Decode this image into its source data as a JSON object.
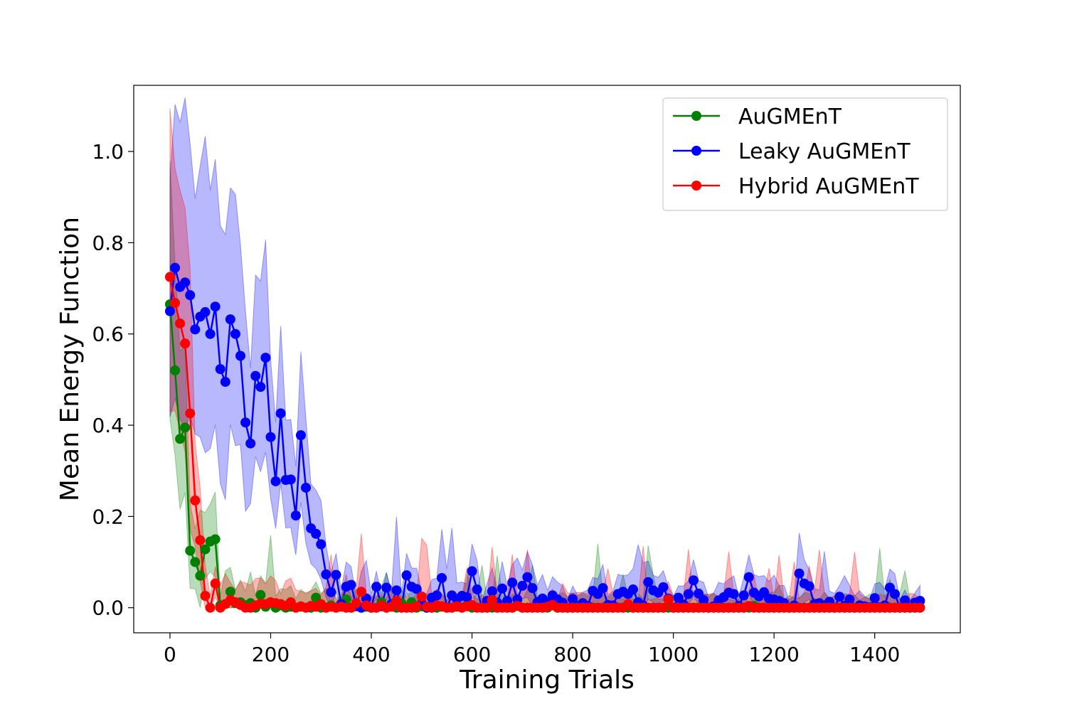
{
  "chart_data": {
    "type": "line",
    "title": "",
    "xlabel": "Training Trials",
    "ylabel": "Mean Energy Function",
    "xlim": [
      -72,
      1570
    ],
    "ylim": [
      -0.055,
      1.145
    ],
    "x_ticks": [
      0,
      200,
      400,
      600,
      800,
      1000,
      1200,
      1400
    ],
    "x_tick_labels": [
      "0",
      "200",
      "400",
      "600",
      "800",
      "1000",
      "1200",
      "1400"
    ],
    "y_ticks": [
      0.0,
      0.2,
      0.4,
      0.6,
      0.8,
      1.0
    ],
    "y_tick_labels": [
      "0.0",
      "0.2",
      "0.4",
      "0.6",
      "0.8",
      "1.0"
    ],
    "grid": false,
    "legend_position": "top-right",
    "marker": "circle",
    "shaded_band": "variability around each mean curve",
    "x_step": 10,
    "series": [
      {
        "name": "AuGMEnT",
        "color": "#008000",
        "values": [
          0.665,
          0.52,
          0.37,
          0.395,
          0.125,
          0.1,
          0.07,
          0.128,
          0.145,
          0.15,
          0.005,
          0.008,
          0.035,
          0.01,
          0.012,
          0.005,
          0.01,
          0.0,
          0.028,
          0.002,
          0.012,
          0.0,
          0.005,
          0.0,
          0.002,
          0.0,
          0.002,
          0.0,
          0.0,
          0.022,
          0.0,
          0.0,
          0.005,
          0.0,
          0.003,
          0.018,
          0.0,
          0.004,
          0.0,
          0.002,
          0.0,
          0.0,
          0.012,
          0.0,
          0.003,
          0.0,
          0.01,
          0.0,
          0.012,
          0.0,
          0.003,
          0.0,
          0.0,
          0.0,
          0.002,
          0.0,
          0.0,
          0.002,
          0.0,
          0.005,
          0.0,
          0.0,
          0.0,
          0.0,
          0.0,
          0.0,
          0.002,
          0.0,
          0.0,
          0.005,
          0.0,
          0.0,
          0.0,
          0.0,
          0.0,
          0.0,
          0.005,
          0.0,
          0.0,
          0.0,
          0.0,
          0.0,
          0.0,
          0.0,
          0.0,
          0.0,
          0.0,
          0.0,
          0.0,
          0.0,
          0.0,
          0.0,
          0.0,
          0.002,
          0.0,
          0.0,
          0.0,
          0.0,
          0.0,
          0.0,
          0.0,
          0.0,
          0.0,
          0.0,
          0.0,
          0.0,
          0.005,
          0.0,
          0.0,
          0.0,
          0.0,
          0.0,
          0.0,
          0.0,
          0.0,
          0.0,
          0.004,
          0.0,
          0.0,
          0.0,
          0.0,
          0.0,
          0.0,
          0.0,
          0.0,
          0.0,
          0.0,
          0.0,
          0.0,
          0.0,
          0.0,
          0.0,
          0.0,
          0.0,
          0.0,
          0.0,
          0.0,
          0.0,
          0.0,
          0.0,
          0.0,
          0.0,
          0.0,
          0.0,
          0.0,
          0.0,
          0.0,
          0.0,
          0.0,
          0.0
        ]
      },
      {
        "name": "Leaky AuGMEnT",
        "color": "#0000ff",
        "values": [
          0.65,
          0.745,
          0.703,
          0.713,
          0.685,
          0.61,
          0.638,
          0.648,
          0.6,
          0.66,
          0.523,
          0.495,
          0.632,
          0.6,
          0.552,
          0.406,
          0.36,
          0.508,
          0.484,
          0.548,
          0.374,
          0.277,
          0.426,
          0.28,
          0.281,
          0.202,
          0.378,
          0.263,
          0.174,
          0.162,
          0.139,
          0.073,
          0.034,
          0.072,
          0.008,
          0.046,
          0.05,
          0.003,
          0.0,
          0.02,
          0.0,
          0.046,
          0.003,
          0.044,
          0.008,
          0.038,
          0.0,
          0.071,
          0.046,
          0.041,
          0.009,
          0.0,
          0.022,
          0.027,
          0.065,
          0.0,
          0.027,
          0.019,
          0.026,
          0.023,
          0.08,
          0.04,
          0.0,
          0.015,
          0.036,
          0.011,
          0.042,
          0.015,
          0.055,
          0.018,
          0.048,
          0.067,
          0.043,
          0.012,
          0.02,
          0.012,
          0.027,
          0.018,
          0.011,
          0.0,
          0.019,
          0.004,
          0.01,
          0.004,
          0.037,
          0.03,
          0.043,
          0.006,
          0.005,
          0.03,
          0.035,
          0.03,
          0.04,
          0.012,
          0.005,
          0.056,
          0.038,
          0.033,
          0.045,
          0.02,
          0.0,
          0.022,
          0.007,
          0.03,
          0.06,
          0.031,
          0.017,
          0.0,
          0.003,
          0.016,
          0.023,
          0.033,
          0.03,
          0.004,
          0.027,
          0.067,
          0.033,
          0.025,
          0.034,
          0.02,
          0.018,
          0.015,
          0.01,
          0.0,
          0.005,
          0.075,
          0.053,
          0.047,
          0.008,
          0.01,
          0.005,
          0.013,
          0.0,
          0.024,
          0.004,
          0.018,
          0.0,
          0.005,
          0.003,
          0.001,
          0.021,
          0.001,
          0.005,
          0.044,
          0.03,
          0.0,
          0.016,
          0.0,
          0.011,
          0.015
        ]
      },
      {
        "name": "Hybrid AuGMEnT",
        "color": "#ff0000",
        "values": [
          0.725,
          0.668,
          0.623,
          0.579,
          0.426,
          0.235,
          0.148,
          0.026,
          0.0,
          0.053,
          0.0,
          0.008,
          0.017,
          0.012,
          0.006,
          0.0,
          0.0,
          0.005,
          0.009,
          0.008,
          0.012,
          0.01,
          0.008,
          0.004,
          0.012,
          0.0,
          0.003,
          0.0,
          0.004,
          0.002,
          0.008,
          0.0,
          0.002,
          0.0,
          0.002,
          0.0,
          0.0,
          0.01,
          0.035,
          0.005,
          0.0,
          0.0,
          0.005,
          0.0,
          0.002,
          0.015,
          0.0,
          0.0,
          0.0,
          0.003,
          0.024,
          0.002,
          0.0,
          0.005,
          0.003,
          0.0,
          0.0,
          0.003,
          0.0,
          0.003,
          0.006,
          0.0,
          0.0,
          0.0,
          0.017,
          0.0,
          0.0,
          0.0,
          0.0,
          0.004,
          0.0,
          0.0,
          0.0,
          0.0,
          0.0,
          0.002,
          0.006,
          0.0,
          0.0,
          0.0,
          0.0,
          0.0,
          0.0,
          0.0,
          0.0,
          0.0,
          0.0,
          0.0,
          0.0,
          0.0,
          0.0,
          0.008,
          0.0,
          0.0,
          0.0,
          0.0,
          0.0,
          0.0,
          0.0,
          0.018,
          0.0,
          0.0,
          0.0,
          0.0,
          0.0,
          0.0,
          0.0,
          0.0,
          0.0,
          0.0,
          0.0,
          0.0,
          0.0,
          0.0,
          0.0,
          0.004,
          0.0,
          0.0,
          0.0,
          0.0,
          0.0,
          0.0,
          0.0,
          0.0,
          0.0,
          0.0,
          0.0,
          0.0,
          0.0,
          0.0,
          0.0,
          0.0,
          0.0,
          0.0,
          0.0,
          0.0,
          0.0,
          0.0,
          0.0,
          0.0,
          0.0,
          0.0,
          0.0,
          0.0,
          0.0,
          0.0,
          0.0,
          0.0,
          0.0,
          0.0
        ]
      }
    ]
  }
}
